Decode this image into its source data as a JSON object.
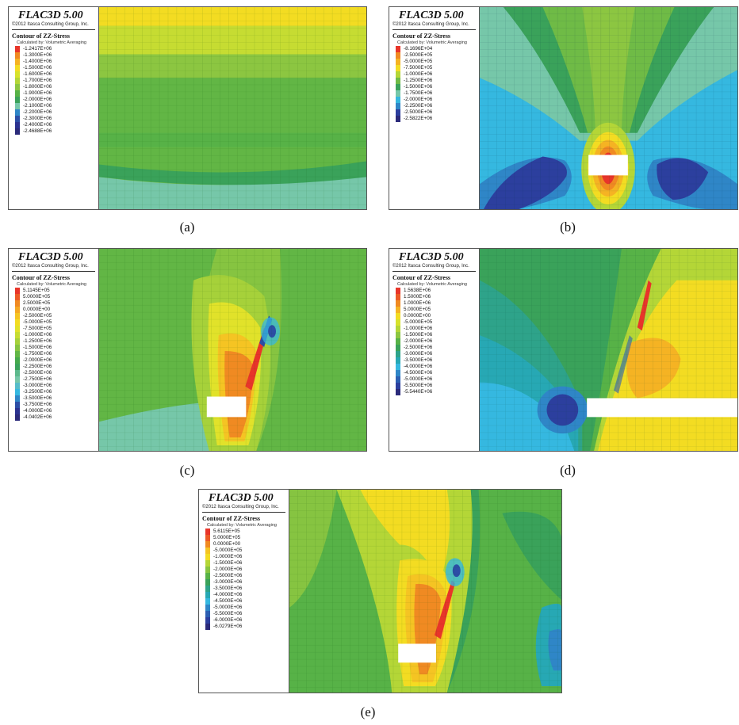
{
  "common": {
    "software": "FLAC3D 5.00",
    "copyright": "©2012 Itasca Consulting Group, Inc.",
    "contour_title": "Contour of ZZ-Stress",
    "calculated_by": "Calculated by: Volumetric Averaging"
  },
  "panels": [
    {
      "caption": "(a)",
      "legend": [
        {
          "value": "-1.2417E+06",
          "color": "#e8352a"
        },
        {
          "value": "-1.3000E+06",
          "color": "#f08a22"
        },
        {
          "value": "-1.4000E+06",
          "color": "#f5b323"
        },
        {
          "value": "-1.5000E+06",
          "color": "#f3dc22"
        },
        {
          "value": "-1.6000E+06",
          "color": "#d7e22c"
        },
        {
          "value": "-1.7000E+06",
          "color": "#b4d637"
        },
        {
          "value": "-1.8000E+06",
          "color": "#8cc641"
        },
        {
          "value": "-1.9000E+06",
          "color": "#57b247"
        },
        {
          "value": "-2.0000E+06",
          "color": "#3aa25a"
        },
        {
          "value": "-2.1000E+06",
          "color": "#76c7a9"
        },
        {
          "value": "-2.2000E+06",
          "color": "#2f86c7"
        },
        {
          "value": "-2.3000E+06",
          "color": "#2c4ea6"
        },
        {
          "value": "-2.4000E+06",
          "color": "#2b3290"
        },
        {
          "value": "-2.4688E+06",
          "color": "#2b2a7a"
        }
      ]
    },
    {
      "caption": "(b)",
      "legend": [
        {
          "value": "-8.1696E+04",
          "color": "#e8352a"
        },
        {
          "value": "-2.5000E+05",
          "color": "#f08a22"
        },
        {
          "value": "-5.0000E+05",
          "color": "#f5b323"
        },
        {
          "value": "-7.5000E+05",
          "color": "#f3dc22"
        },
        {
          "value": "-1.0000E+06",
          "color": "#b4d637"
        },
        {
          "value": "-1.2500E+06",
          "color": "#6fbb46"
        },
        {
          "value": "-1.5000E+06",
          "color": "#3aa25a"
        },
        {
          "value": "-1.7500E+06",
          "color": "#76c7a9"
        },
        {
          "value": "-2.0000E+06",
          "color": "#35b8e0"
        },
        {
          "value": "-2.2500E+06",
          "color": "#2f86c7"
        },
        {
          "value": "-2.5000E+06",
          "color": "#2c3f9e"
        },
        {
          "value": "-2.5822E+06",
          "color": "#2b2a7a"
        }
      ]
    },
    {
      "caption": "(c)",
      "legend": [
        {
          "value": "5.1145E+05",
          "color": "#e8352a"
        },
        {
          "value": "5.0000E+05",
          "color": "#ec5a26"
        },
        {
          "value": "2.5000E+05",
          "color": "#f08a22"
        },
        {
          "value": "0.0000E+00",
          "color": "#f5a823"
        },
        {
          "value": "-2.5000E+05",
          "color": "#f5c423"
        },
        {
          "value": "-5.0000E+05",
          "color": "#f3dc22"
        },
        {
          "value": "-7.5000E+05",
          "color": "#e1e22a"
        },
        {
          "value": "-1.0000E+06",
          "color": "#c6dc32"
        },
        {
          "value": "-1.2500E+06",
          "color": "#a6d13a"
        },
        {
          "value": "-1.5000E+06",
          "color": "#86c441"
        },
        {
          "value": "-1.7500E+06",
          "color": "#62b645"
        },
        {
          "value": "-2.0000E+06",
          "color": "#45a94c"
        },
        {
          "value": "-2.2500E+06",
          "color": "#3aa25a"
        },
        {
          "value": "-2.5000E+06",
          "color": "#5cb98c"
        },
        {
          "value": "-2.7500E+06",
          "color": "#76c7a9"
        },
        {
          "value": "-3.0000E+06",
          "color": "#56bcc8"
        },
        {
          "value": "-3.2500E+06",
          "color": "#35b8e0"
        },
        {
          "value": "-3.5000E+06",
          "color": "#2f86c7"
        },
        {
          "value": "-3.7500E+06",
          "color": "#2c4ea6"
        },
        {
          "value": "-4.0000E+06",
          "color": "#2b3290"
        },
        {
          "value": "-4.0402E+06",
          "color": "#2b2a7a"
        }
      ]
    },
    {
      "caption": "(d)",
      "legend": [
        {
          "value": "1.5638E+06",
          "color": "#e8352a"
        },
        {
          "value": "1.5000E+06",
          "color": "#ec5a26"
        },
        {
          "value": "1.0000E+06",
          "color": "#f08a22"
        },
        {
          "value": "5.0000E+05",
          "color": "#f5b323"
        },
        {
          "value": "0.0000E+00",
          "color": "#f3dc22"
        },
        {
          "value": "-5.0000E+05",
          "color": "#d7e22c"
        },
        {
          "value": "-1.0000E+06",
          "color": "#b4d637"
        },
        {
          "value": "-1.5000E+06",
          "color": "#8cc641"
        },
        {
          "value": "-2.0000E+06",
          "color": "#57b247"
        },
        {
          "value": "-2.5000E+06",
          "color": "#3aa25a"
        },
        {
          "value": "-3.0000E+06",
          "color": "#2ea38a"
        },
        {
          "value": "-3.5000E+06",
          "color": "#27a8b4"
        },
        {
          "value": "-4.0000E+06",
          "color": "#35b8e0"
        },
        {
          "value": "-4.5000E+06",
          "color": "#2f86c7"
        },
        {
          "value": "-5.0000E+06",
          "color": "#2c5fb2"
        },
        {
          "value": "-5.5000E+06",
          "color": "#2c3f9e"
        },
        {
          "value": "-5.5440E+06",
          "color": "#2b2a7a"
        }
      ]
    },
    {
      "caption": "(e)",
      "legend": [
        {
          "value": "5.6115E+05",
          "color": "#e8352a"
        },
        {
          "value": "5.0000E+05",
          "color": "#ec5a26"
        },
        {
          "value": "0.0000E+00",
          "color": "#f08a22"
        },
        {
          "value": "-5.0000E+05",
          "color": "#f5c423"
        },
        {
          "value": "-1.0000E+06",
          "color": "#f3dc22"
        },
        {
          "value": "-1.5000E+06",
          "color": "#b4d637"
        },
        {
          "value": "-2.0000E+06",
          "color": "#86c441"
        },
        {
          "value": "-2.5000E+06",
          "color": "#57b247"
        },
        {
          "value": "-3.0000E+06",
          "color": "#3aa25a"
        },
        {
          "value": "-3.5000E+06",
          "color": "#2ea38a"
        },
        {
          "value": "-4.0000E+06",
          "color": "#27a8b4"
        },
        {
          "value": "-4.5000E+06",
          "color": "#35b8e0"
        },
        {
          "value": "-5.0000E+06",
          "color": "#2f86c7"
        },
        {
          "value": "-5.5000E+06",
          "color": "#2c5fb2"
        },
        {
          "value": "-6.0000E+06",
          "color": "#2c3f9e"
        },
        {
          "value": "-6.0279E+06",
          "color": "#2b2a7a"
        }
      ]
    }
  ]
}
